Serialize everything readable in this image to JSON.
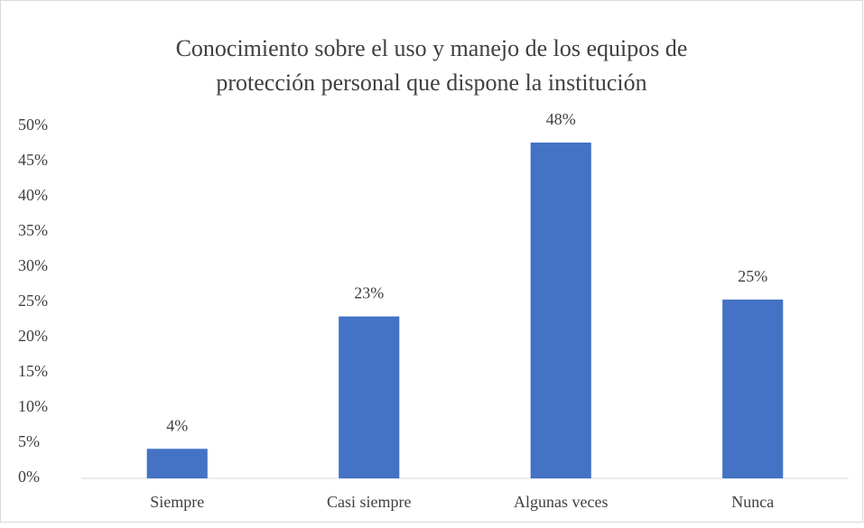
{
  "chart_data": {
    "type": "bar",
    "title": [
      "Conocimiento sobre el uso y manejo de los equipos de",
      "protección personal que dispone la institución"
    ],
    "categories": [
      "Siempre",
      "Casi siempre",
      "Algunas veces",
      "Nunca"
    ],
    "values": [
      4.2,
      23,
      47.7,
      25.4
    ],
    "value_labels": [
      "4%",
      "23%",
      "48%",
      "25%"
    ],
    "color": "#4472c4",
    "ylim": [
      0,
      50
    ],
    "yticks": [
      {
        "value": 0,
        "label": "0%"
      },
      {
        "value": 5,
        "label": "5%"
      },
      {
        "value": 10,
        "label": "10%"
      },
      {
        "value": 15,
        "label": "15%"
      },
      {
        "value": 20,
        "label": "20%"
      },
      {
        "value": 25,
        "label": "25%"
      },
      {
        "value": 30,
        "label": "30%"
      },
      {
        "value": 35,
        "label": "35%"
      },
      {
        "value": 40,
        "label": "40%"
      },
      {
        "value": 45,
        "label": "45%"
      },
      {
        "value": 50,
        "label": "50%"
      }
    ],
    "grid": false
  }
}
